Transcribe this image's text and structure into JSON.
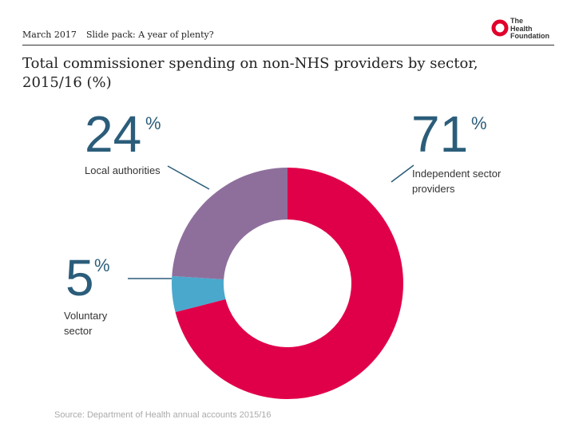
{
  "header": {
    "date": "March 2017",
    "slide_pack": "Slide pack: A year of plenty?"
  },
  "logo": {
    "line1": "The",
    "line2": "Health",
    "line3": "Foundation",
    "ring_color": "#e0002a"
  },
  "chart_data": {
    "type": "pie",
    "variant": "donut",
    "title": "Total commissioner spending on non-NHS providers by sector, 2015/16 (%)",
    "slices": [
      {
        "label": "Independent sector providers",
        "label_lines": [
          "Independent sector",
          "providers"
        ],
        "value": 71,
        "value_text": "71",
        "color": "#e0004a"
      },
      {
        "label": "Voluntary sector",
        "label_lines": [
          "Voluntary",
          "sector"
        ],
        "value": 5,
        "value_text": "5",
        "color": "#4aa8cc"
      },
      {
        "label": "Local authorities",
        "label_lines": [
          "Local authorities"
        ],
        "value": 24,
        "value_text": "24",
        "color": "#8e6f9c"
      }
    ],
    "percent_sign": "%",
    "source": "Source: Department of Health annual accounts 2015/16"
  }
}
